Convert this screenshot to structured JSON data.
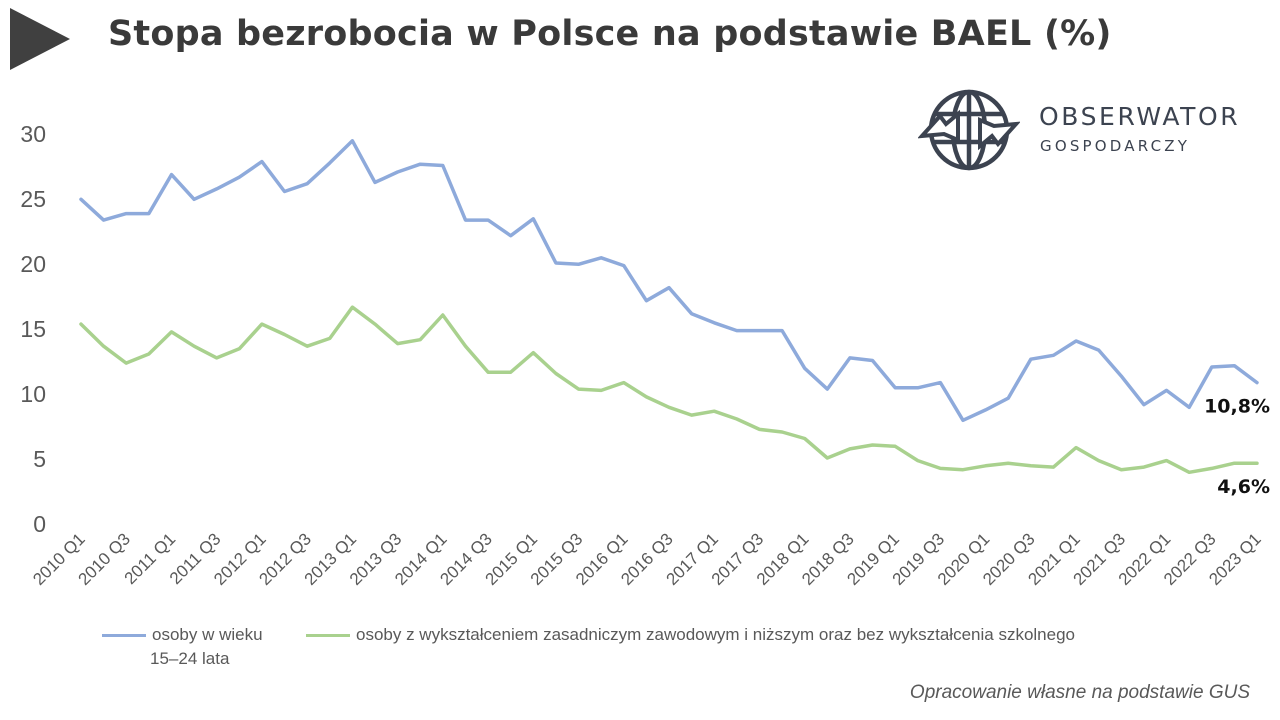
{
  "title": "Stopa bezrobocia w Polsce na podstawie BAEL (%)",
  "logo": {
    "name": "OBSERWATOR",
    "subtitle": "GOSPODARCZY",
    "icon": "globe-arrows-icon"
  },
  "source_note": "Opracowanie własne na podstawie GUS",
  "legend": {
    "series1_line1": "osoby w wieku",
    "series1_line2": "15–24 lata",
    "series2": "osoby z wykształceniem zasadniczym zawodowym i niższym oraz bez wykształcenia szkolnego"
  },
  "chart_data": {
    "type": "line",
    "title": "Stopa bezrobocia w Polsce na podstawie BAEL (%)",
    "xlabel": "",
    "ylabel": "",
    "ylim": [
      0,
      30
    ],
    "yticks": [
      0,
      5,
      10,
      15,
      20,
      25,
      30
    ],
    "grid": false,
    "legend_position": "bottom",
    "x": [
      "2010 Q1",
      "2010 Q2",
      "2010 Q3",
      "2010 Q4",
      "2011 Q1",
      "2011 Q2",
      "2011 Q3",
      "2011 Q4",
      "2012 Q1",
      "2012 Q2",
      "2012 Q3",
      "2012 Q4",
      "2013 Q1",
      "2013 Q2",
      "2013 Q3",
      "2013 Q4",
      "2014 Q1",
      "2014 Q2",
      "2014 Q3",
      "2014 Q4",
      "2015 Q1",
      "2015 Q2",
      "2015 Q3",
      "2015 Q4",
      "2016 Q1",
      "2016 Q2",
      "2016 Q3",
      "2016 Q4",
      "2017 Q1",
      "2017 Q2",
      "2017 Q3",
      "2017 Q4",
      "2018 Q1",
      "2018 Q2",
      "2018 Q3",
      "2018 Q4",
      "2019 Q1",
      "2019 Q2",
      "2019 Q3",
      "2019 Q4",
      "2020 Q1",
      "2020 Q2",
      "2020 Q3",
      "2020 Q4",
      "2021 Q1",
      "2021 Q2",
      "2021 Q3",
      "2021 Q4",
      "2022 Q1",
      "2022 Q2",
      "2022 Q3",
      "2022 Q4",
      "2023 Q1"
    ],
    "x_tick_labels": [
      "2010 Q1",
      "2010 Q3",
      "2011 Q1",
      "2011 Q3",
      "2012 Q1",
      "2012 Q3",
      "2013 Q1",
      "2013 Q3",
      "2014 Q1",
      "2014 Q3",
      "2015 Q1",
      "2015 Q3",
      "2016 Q1",
      "2016 Q3",
      "2017 Q1",
      "2017 Q3",
      "2018 Q1",
      "2018 Q3",
      "2019 Q1",
      "2019 Q3",
      "2020 Q1",
      "2020 Q3",
      "2021 Q1",
      "2021 Q3",
      "2022 Q1",
      "2022 Q3",
      "2023 Q1"
    ],
    "series": [
      {
        "name": "osoby w wieku 15–24 lata",
        "color": "#8eaadb",
        "end_label": "10,8%",
        "values": [
          24.9,
          23.3,
          23.8,
          23.8,
          26.8,
          24.9,
          25.7,
          26.6,
          27.8,
          25.5,
          26.1,
          27.7,
          29.4,
          26.2,
          27.0,
          27.6,
          27.5,
          23.3,
          23.3,
          22.1,
          23.4,
          20.0,
          19.9,
          20.4,
          19.8,
          17.1,
          18.1,
          16.1,
          15.4,
          14.8,
          14.8,
          14.8,
          11.9,
          10.3,
          12.7,
          12.5,
          10.4,
          10.4,
          10.8,
          7.9,
          8.7,
          9.6,
          12.6,
          12.9,
          14.0,
          13.3,
          11.3,
          9.1,
          10.2,
          8.9,
          12.0,
          12.1,
          10.8
        ]
      },
      {
        "name": "osoby z wykształceniem zasadniczym zawodowym i niższym oraz bez wykształcenia szkolnego",
        "color": "#a9d18e",
        "end_label": "4,6%",
        "values": [
          15.3,
          13.6,
          12.3,
          13.0,
          14.7,
          13.6,
          12.7,
          13.4,
          15.3,
          14.5,
          13.6,
          14.2,
          16.6,
          15.3,
          13.8,
          14.1,
          16.0,
          13.6,
          11.6,
          11.6,
          13.1,
          11.5,
          10.3,
          10.2,
          10.8,
          9.7,
          8.9,
          8.3,
          8.6,
          8.0,
          7.2,
          7.0,
          6.5,
          5.0,
          5.7,
          6.0,
          5.9,
          4.8,
          4.2,
          4.1,
          4.4,
          4.6,
          4.4,
          4.3,
          5.8,
          4.8,
          4.1,
          4.3,
          4.8,
          3.9,
          4.2,
          4.6,
          4.6
        ]
      }
    ]
  }
}
